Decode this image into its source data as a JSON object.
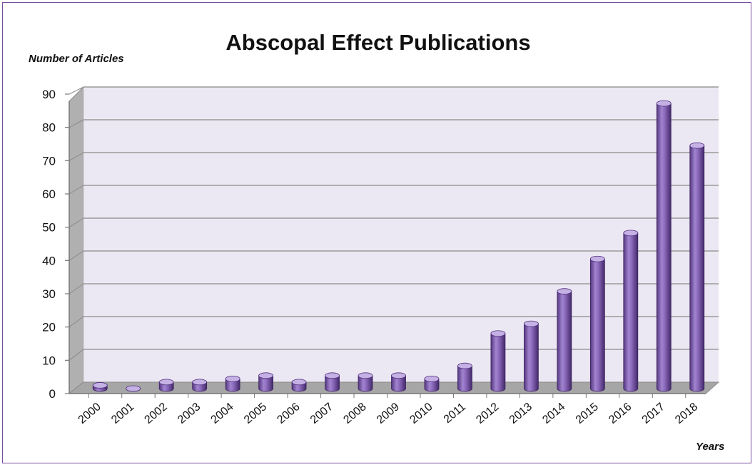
{
  "chart_data": {
    "type": "bar",
    "title": "Abscopal Effect Publications",
    "ylabel": "Number of Articles",
    "xlabel": "Years",
    "categories": [
      "2000",
      "2001",
      "2002",
      "2003",
      "2004",
      "2005",
      "2006",
      "2007",
      "2008",
      "2009",
      "2010",
      "2011",
      "2012",
      "2013",
      "2014",
      "2015",
      "2016",
      "2017",
      "2018"
    ],
    "series": [
      {
        "values": [
          1,
          0,
          2,
          2,
          3,
          4,
          2,
          4,
          4,
          4,
          3,
          7,
          17,
          20,
          30,
          40,
          48,
          88,
          75
        ]
      }
    ],
    "yticks": [
      "0",
      "10",
      "20",
      "30",
      "40",
      "50",
      "60",
      "70",
      "80",
      "90"
    ],
    "ylim": [
      0,
      90
    ],
    "grid": true,
    "legend": "none",
    "style": "3d-cylinder",
    "colors": {
      "bar": "#8e6cc0",
      "bar_dark": "#4e2f7c",
      "bar_light": "#c5b1e4",
      "wall": "#ece8f3",
      "floor": "#a6a6a6",
      "side_wall": "#b0b0b0",
      "border": "#7a4f9e"
    }
  }
}
